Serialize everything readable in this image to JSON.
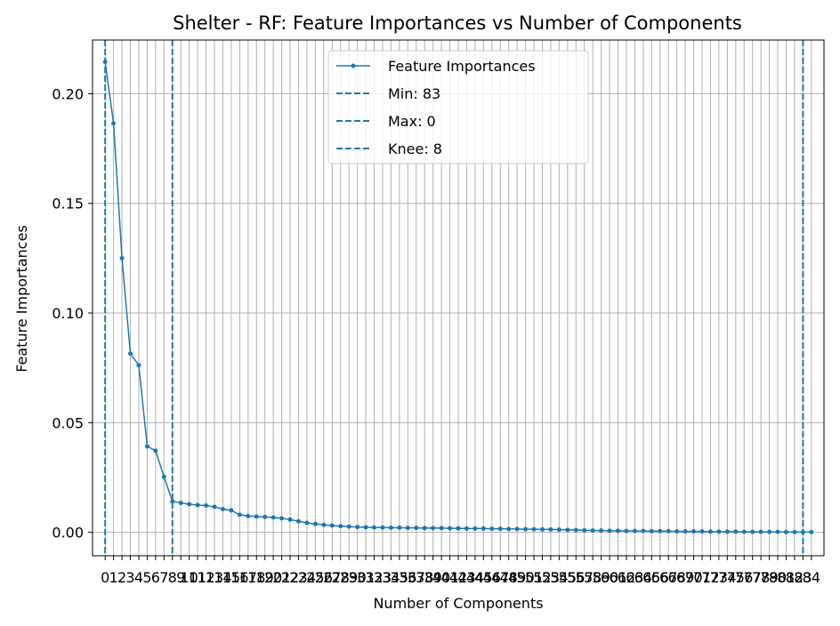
{
  "chart_data": {
    "type": "line",
    "title": "Shelter - RF: Feature Importances vs Number of Components",
    "xlabel": "Number of Components",
    "ylabel": "Feature Importances",
    "xlim": [
      -1.5,
      85.5
    ],
    "ylim": [
      -0.0107,
      0.2245
    ],
    "grid": true,
    "legend_placement": "top-center",
    "x": [
      0,
      1,
      2,
      3,
      4,
      5,
      6,
      7,
      8,
      9,
      10,
      11,
      12,
      13,
      14,
      15,
      16,
      17,
      18,
      19,
      20,
      21,
      22,
      23,
      24,
      25,
      26,
      27,
      28,
      29,
      30,
      31,
      32,
      33,
      34,
      35,
      36,
      37,
      38,
      39,
      40,
      41,
      42,
      43,
      44,
      45,
      46,
      47,
      48,
      49,
      50,
      51,
      52,
      53,
      54,
      55,
      56,
      57,
      58,
      59,
      60,
      61,
      62,
      63,
      64,
      65,
      66,
      67,
      68,
      69,
      70,
      71,
      72,
      73,
      74,
      75,
      76,
      77,
      78,
      79,
      80,
      81,
      82,
      83,
      84
    ],
    "series": [
      {
        "name": "Feature Importances",
        "color": "#1f77b4",
        "values": [
          0.2145,
          0.1865,
          0.125,
          0.0815,
          0.0762,
          0.0392,
          0.0372,
          0.0253,
          0.0141,
          0.0134,
          0.0128,
          0.0124,
          0.0122,
          0.0116,
          0.0106,
          0.01,
          0.008,
          0.0074,
          0.0072,
          0.007,
          0.0068,
          0.0064,
          0.0058,
          0.005,
          0.0043,
          0.0038,
          0.0034,
          0.0031,
          0.0028,
          0.0026,
          0.0024,
          0.0023,
          0.0022,
          0.0022,
          0.0021,
          0.0021,
          0.002,
          0.002,
          0.0019,
          0.0019,
          0.0019,
          0.0018,
          0.0018,
          0.0017,
          0.0017,
          0.0017,
          0.0016,
          0.0016,
          0.0015,
          0.0015,
          0.0014,
          0.0014,
          0.0013,
          0.0013,
          0.0012,
          0.0011,
          0.001,
          0.0009,
          0.0008,
          0.0008,
          0.0007,
          0.0007,
          0.0006,
          0.0006,
          0.0006,
          0.0005,
          0.0005,
          0.0005,
          0.0004,
          0.0004,
          0.0004,
          0.0004,
          0.0003,
          0.0003,
          0.0003,
          0.0003,
          0.0002,
          0.0002,
          0.0002,
          0.0002,
          0.0002,
          0.0001,
          0.0001,
          0.0001,
          0.0001
        ]
      }
    ],
    "vlines": [
      {
        "label": "Min: 83",
        "x": 83,
        "color": "#1f77b4"
      },
      {
        "label": "Max: 0",
        "x": 0,
        "color": "#1f77b4"
      },
      {
        "label": "Knee: 8",
        "x": 8,
        "color": "#1f77b4"
      }
    ],
    "yticks": [
      0.0,
      0.05,
      0.1,
      0.15,
      0.2
    ],
    "ytick_labels": [
      "0.00",
      "0.05",
      "0.10",
      "0.15",
      "0.20"
    ]
  }
}
